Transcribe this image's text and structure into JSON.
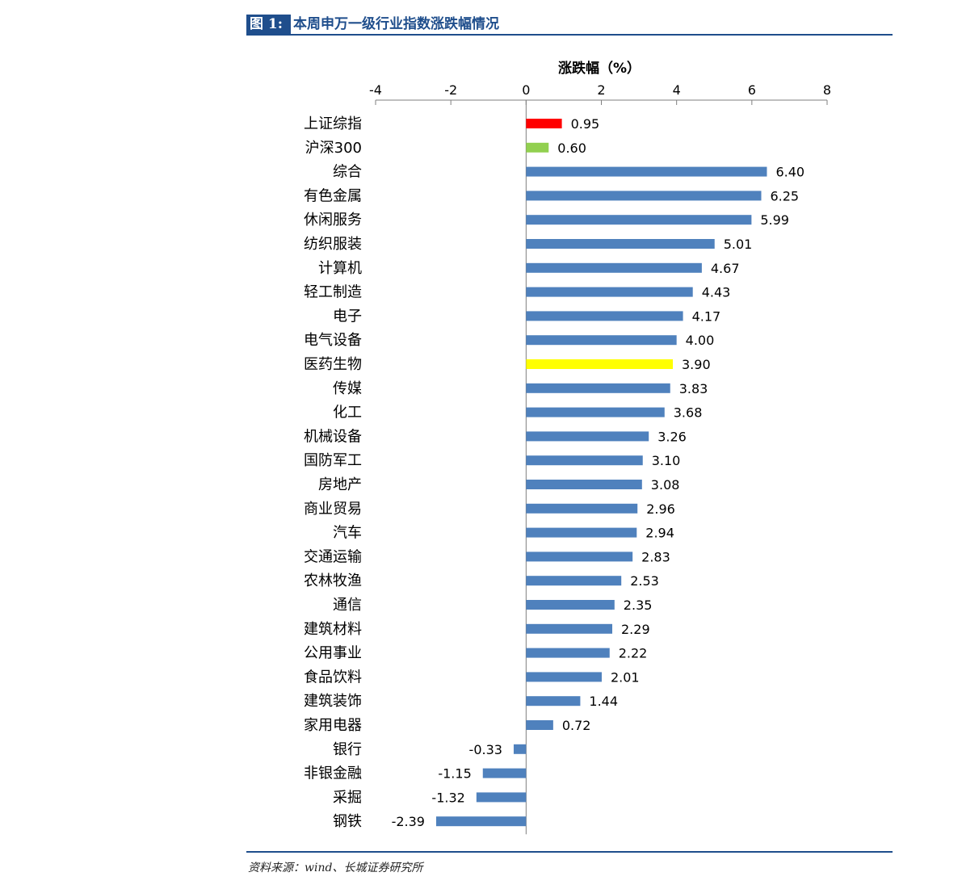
{
  "figure": {
    "label": "图 1:",
    "title": "本周申万一级行业指数涨跌幅情况",
    "source": "资料来源：wind、长城证券研究所"
  },
  "colors": {
    "header": "#1f4e8c",
    "default_bar": "#4f81bd",
    "highlight_red": "#ff0000",
    "highlight_green": "#92d050",
    "highlight_yellow": "#ffff00",
    "axis": "#7f7f7f"
  },
  "chart_data": {
    "type": "bar",
    "orientation": "horizontal",
    "title": "涨跌幅（%）",
    "xlabel": "涨跌幅（%）",
    "ylabel": "",
    "xlim": [
      -4,
      8
    ],
    "xticks": [
      "-4",
      "-2",
      "0",
      "2",
      "4",
      "6",
      "8"
    ],
    "xtick_values": [
      -4,
      -2,
      0,
      2,
      4,
      6,
      8
    ],
    "grid": false,
    "categories": [
      "上证综指",
      "沪深300",
      "综合",
      "有色金属",
      "休闲服务",
      "纺织服装",
      "计算机",
      "轻工制造",
      "电子",
      "电气设备",
      "医药生物",
      "传媒",
      "化工",
      "机械设备",
      "国防军工",
      "房地产",
      "商业贸易",
      "汽车",
      "交通运输",
      "农林牧渔",
      "通信",
      "建筑材料",
      "公用事业",
      "食品饮料",
      "建筑装饰",
      "家用电器",
      "银行",
      "非银金融",
      "采掘",
      "钢铁"
    ],
    "values": [
      0.95,
      0.6,
      6.4,
      6.25,
      5.99,
      5.01,
      4.67,
      4.43,
      4.17,
      4.0,
      3.9,
      3.83,
      3.68,
      3.26,
      3.1,
      3.08,
      2.96,
      2.94,
      2.83,
      2.53,
      2.35,
      2.29,
      2.22,
      2.01,
      1.44,
      0.72,
      -0.33,
      -1.15,
      -1.32,
      -2.39
    ],
    "value_labels": [
      "0.95",
      "0.60",
      "6.40",
      "6.25",
      "5.99",
      "5.01",
      "4.67",
      "4.43",
      "4.17",
      "4.00",
      "3.90",
      "3.83",
      "3.68",
      "3.26",
      "3.10",
      "3.08",
      "2.96",
      "2.94",
      "2.83",
      "2.53",
      "2.35",
      "2.29",
      "2.22",
      "2.01",
      "1.44",
      "0.72",
      "-0.33",
      "-1.15",
      "-1.32",
      "-2.39"
    ],
    "bar_colors": [
      "#ff0000",
      "#92d050",
      "#4f81bd",
      "#4f81bd",
      "#4f81bd",
      "#4f81bd",
      "#4f81bd",
      "#4f81bd",
      "#4f81bd",
      "#4f81bd",
      "#ffff00",
      "#4f81bd",
      "#4f81bd",
      "#4f81bd",
      "#4f81bd",
      "#4f81bd",
      "#4f81bd",
      "#4f81bd",
      "#4f81bd",
      "#4f81bd",
      "#4f81bd",
      "#4f81bd",
      "#4f81bd",
      "#4f81bd",
      "#4f81bd",
      "#4f81bd",
      "#4f81bd",
      "#4f81bd",
      "#4f81bd",
      "#4f81bd"
    ]
  }
}
